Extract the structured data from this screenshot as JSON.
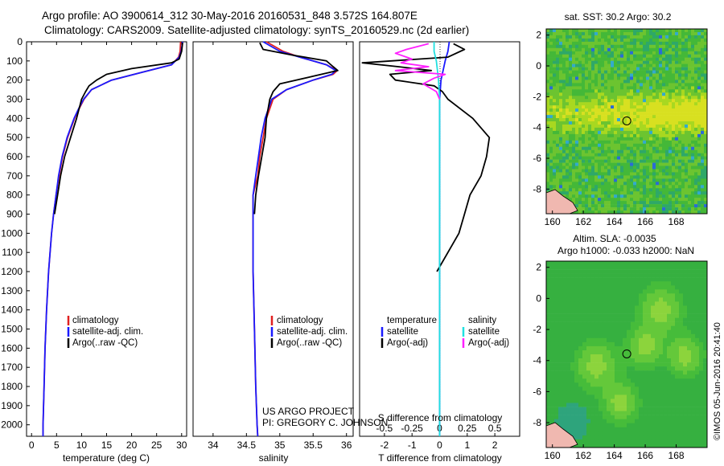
{
  "header": {
    "line1": "Argo profile: AO 3900614_312 30-May-2016 20160531_848 3.572S 164.807E",
    "line2": "Climatology: CARS2009. Satellite-adjusted climatology: synTS_20160529.nc (2d earlier)"
  },
  "credit": {
    "line1": "US ARGO PROJECT",
    "line2": "PI: GREGORY C. JOHNSON"
  },
  "imos_stamp": "©IMOS 05-Jun-2016 20:41:40",
  "colors": {
    "climatology": "#e02020",
    "satellite": "#1a1aff",
    "argo": "#000000",
    "sal_satellite": "#20e0e0",
    "sal_argo": "#ff20ff"
  },
  "chart_data": [
    {
      "type": "line",
      "id": "temperature",
      "xlabel": "temperature (deg C)",
      "ylabel": "",
      "xlim": [
        -1,
        31
      ],
      "ylim": [
        2060,
        0
      ],
      "xticks": [
        "0",
        "5",
        "10",
        "15",
        "20",
        "25",
        "30"
      ],
      "yticks": [
        "0",
        "100",
        "200",
        "300",
        "400",
        "500",
        "600",
        "700",
        "800",
        "900",
        "1000",
        "1100",
        "1200",
        "1300",
        "1400",
        "1500",
        "1600",
        "1700",
        "1800",
        "1900",
        "2000"
      ],
      "legend": [
        "climatology",
        "satellite-adj. clim.",
        "Argo(..raw -QC)"
      ],
      "legend_position": "lower-left",
      "series": [
        {
          "name": "climatology",
          "depth": [
            0,
            50,
            80,
            120,
            160,
            200,
            250,
            300,
            350,
            400,
            500,
            600,
            700,
            800,
            900,
            1000,
            1200,
            1400,
            1600,
            1800,
            2000,
            2060
          ],
          "values": [
            29.8,
            29.7,
            29.4,
            28,
            22,
            16,
            12,
            10.5,
            9.5,
            8.6,
            7.2,
            6.2,
            5.5,
            4.9,
            4.4,
            4,
            3.4,
            3,
            2.7,
            2.5,
            2.3,
            2.3
          ]
        },
        {
          "name": "satellite-adj. clim.",
          "depth": [
            0,
            50,
            80,
            120,
            160,
            200,
            250,
            300,
            350,
            400,
            500,
            600,
            700,
            800,
            900,
            1000,
            1200,
            1400,
            1600,
            1800,
            2000,
            2060
          ],
          "values": [
            30.2,
            29.9,
            29.5,
            28,
            22,
            16,
            12,
            10.4,
            9.4,
            8.5,
            7.1,
            6.1,
            5.4,
            4.9,
            4.4,
            4,
            3.4,
            3,
            2.7,
            2.5,
            2.3,
            2.3
          ]
        },
        {
          "name": "Argo(..raw -QC)",
          "depth": [
            5,
            50,
            90,
            110,
            140,
            170,
            200,
            230,
            260,
            300,
            400,
            500,
            600,
            700,
            800,
            900
          ],
          "values": [
            30.2,
            30,
            29.5,
            28,
            20,
            15,
            13,
            11.5,
            10.8,
            10,
            9,
            7.8,
            6.6,
            5.8,
            5.2,
            4.6
          ]
        }
      ]
    },
    {
      "type": "line",
      "id": "salinity",
      "xlabel": "salinity",
      "ylabel": "",
      "xlim": [
        33.7,
        36.1
      ],
      "ylim": [
        2060,
        0
      ],
      "xticks": [
        "34",
        "34.5",
        "35",
        "35.5",
        "36"
      ],
      "legend": [
        "climatology",
        "satellite-adj. clim.",
        "Argo(..raw -QC)"
      ],
      "legend_position": "lower-left",
      "series": [
        {
          "name": "climatology",
          "depth": [
            0,
            50,
            80,
            120,
            150,
            170,
            200,
            250,
            300,
            400,
            500,
            600,
            700,
            800,
            1000,
            1200,
            1500,
            1800,
            2000,
            2060
          ],
          "values": [
            34.8,
            35.05,
            35.3,
            35.7,
            35.86,
            35.8,
            35.5,
            35.1,
            34.9,
            34.8,
            34.75,
            34.7,
            34.67,
            34.6,
            34.6,
            34.6,
            34.62,
            34.64,
            34.66,
            34.67
          ]
        },
        {
          "name": "satellite-adj. clim.",
          "depth": [
            0,
            50,
            80,
            120,
            150,
            170,
            200,
            250,
            300,
            400,
            500,
            600,
            700,
            800,
            1000,
            1200,
            1500,
            1800,
            2000,
            2060
          ],
          "values": [
            34.75,
            35,
            35.3,
            35.7,
            35.84,
            35.78,
            35.5,
            35.1,
            34.88,
            34.78,
            34.72,
            34.68,
            34.64,
            34.6,
            34.6,
            34.6,
            34.62,
            34.64,
            34.66,
            34.67
          ]
        },
        {
          "name": "Argo(..raw -QC)",
          "depth": [
            5,
            40,
            70,
            100,
            130,
            150,
            180,
            220,
            260,
            300,
            400,
            500,
            600,
            700,
            800,
            900
          ],
          "values": [
            34.7,
            34.75,
            35.2,
            35.7,
            35.8,
            35.87,
            35.5,
            35.0,
            34.9,
            34.85,
            34.8,
            34.78,
            34.73,
            34.68,
            34.64,
            34.62
          ]
        }
      ]
    },
    {
      "type": "line",
      "id": "difference",
      "xlabel": "T difference from climatology",
      "xlabel_top": "S difference from climatology",
      "xlim": [
        -2.9,
        2.9
      ],
      "ylim": [
        2060,
        0
      ],
      "xticks": [
        "-2",
        "-1",
        "0",
        "1",
        "2"
      ],
      "xticks_top": [
        "-0.5",
        "-0.25",
        "0",
        "0.25",
        "0.5"
      ],
      "legend_titles": [
        "temperature",
        "salinity"
      ],
      "legend": [
        "satellite",
        "Argo(-adj)",
        "satellite",
        "Argo(-adj)"
      ],
      "legend_position": "lower-center",
      "series": [
        {
          "name": "temperature satellite",
          "depth": [
            0,
            50,
            100,
            200,
            300,
            500,
            1000,
            1500,
            2000,
            2060
          ],
          "values": [
            0.35,
            0.3,
            0.2,
            0.05,
            0,
            0,
            0,
            0,
            0,
            0
          ]
        },
        {
          "name": "temperature Argo(-adj)",
          "depth": [
            10,
            40,
            80,
            110,
            130,
            150,
            170,
            200,
            230,
            260,
            300,
            400,
            500,
            600,
            700,
            800,
            900,
            1000,
            1100,
            1200
          ],
          "values": [
            0.5,
            0.9,
            0.3,
            -2.8,
            -1.5,
            -0.3,
            -1.8,
            -1.6,
            -0.2,
            0.1,
            0.3,
            1.2,
            1.8,
            1.7,
            1.5,
            1.1,
            0.9,
            0.7,
            0.3,
            -0.1
          ]
        },
        {
          "name": "salinity satellite",
          "depth": [
            0,
            50,
            100,
            150,
            200,
            300,
            500,
            1000,
            2000,
            2060
          ],
          "values": [
            -0.05,
            -0.05,
            -0.03,
            -0.02,
            -0.01,
            0,
            0,
            0,
            0,
            0
          ]
        },
        {
          "name": "salinity Argo(-adj)",
          "depth": [
            10,
            40,
            60,
            90,
            110,
            130,
            150,
            170,
            190,
            220,
            260,
            300
          ],
          "values": [
            -0.1,
            -0.3,
            -0.4,
            -0.25,
            -0.35,
            -0.1,
            -0.4,
            0.05,
            -0.05,
            -0.15,
            -0.03,
            0
          ]
        }
      ]
    },
    {
      "type": "heatmap",
      "id": "sst_map",
      "title": "sat. SST: 30.2 Argo: 30.2",
      "xlim": [
        159.6,
        170
      ],
      "ylim": [
        -9.6,
        2.4
      ],
      "xticks": [
        "160",
        "162",
        "164",
        "166",
        "168"
      ],
      "yticks": [
        "2",
        "0",
        "-2",
        "-4",
        "-6",
        "-8"
      ],
      "marker": {
        "lon": 164.807,
        "lat": -3.572
      }
    },
    {
      "type": "heatmap",
      "id": "sla_map",
      "title": "Altim. SLA: -0.0035",
      "subtitle": "Argo h1000: -0.033 h2000: NaN",
      "xlim": [
        159.6,
        170
      ],
      "ylim": [
        -9.6,
        2.4
      ],
      "xticks": [
        "160",
        "162",
        "164",
        "166",
        "168"
      ],
      "yticks": [
        "2",
        "0",
        "-2",
        "-4",
        "-6",
        "-8"
      ],
      "marker": {
        "lon": 164.807,
        "lat": -3.572
      }
    }
  ]
}
